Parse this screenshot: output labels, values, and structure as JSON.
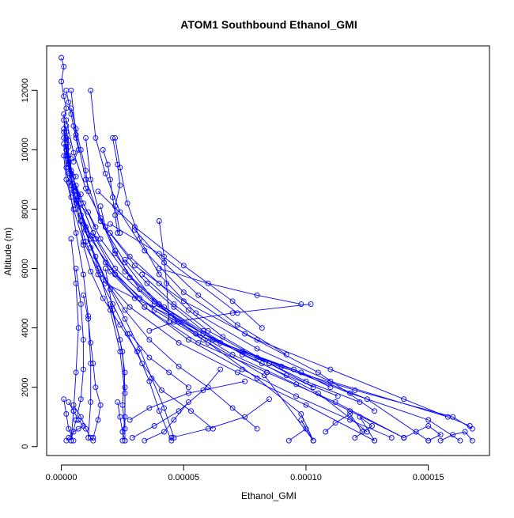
{
  "chart_data": {
    "type": "line",
    "title": "ATOM1 Southbound Ethanol_GMI",
    "xlabel": "Ethanol_GMI",
    "ylabel": "Altitude (m)",
    "xlim": [
      -6e-06,
      0.000175
    ],
    "ylim": [
      -300,
      13500
    ],
    "x_ticks": [
      0,
      5e-05,
      0.0001,
      0.00015
    ],
    "x_tick_labels": [
      "0.00000",
      "0.00005",
      "0.00010",
      "0.00015"
    ],
    "y_ticks": [
      0,
      2000,
      4000,
      6000,
      8000,
      10000,
      12000
    ],
    "y_tick_labels": [
      "0",
      "2000",
      "4000",
      "6000",
      "8000",
      "10000",
      "12000"
    ],
    "grid": false,
    "legend": "none",
    "color": "#0000ff",
    "marker": "open-circle",
    "series": [
      {
        "x": [
          1e-06,
          2e-06,
          4e-06,
          6e-06,
          9e-06,
          1.1e-05,
          1.2e-05,
          1.2e-05,
          1.1e-05
        ],
        "y": [
          10200,
          9400,
          8400,
          7200,
          5800,
          4400,
          2800,
          1500,
          300
        ]
      },
      {
        "x": [
          2e-06,
          3e-06,
          6e-06,
          1e-05,
          1.5e-05,
          2e-05,
          2.4e-05,
          2.6e-05,
          2.6e-05
        ],
        "y": [
          10800,
          9800,
          8600,
          7300,
          6000,
          4600,
          3200,
          1800,
          200
        ]
      },
      {
        "x": [
          1e-06,
          2e-06,
          5e-06,
          1e-05,
          1.8e-05,
          3.2e-05,
          5.5e-05,
          8.5e-05,
          0.00012,
          0.00016,
          0.000168
        ],
        "y": [
          11200,
          9800,
          8600,
          7400,
          6200,
          5000,
          3800,
          2800,
          1900,
          1000,
          600
        ]
      },
      {
        "x": [
          1e-06,
          3e-06,
          7e-06,
          1.3e-05,
          2.2e-05,
          3.8e-05,
          6.2e-05,
          9e-05,
          0.000118,
          0.00015,
          0.000163
        ],
        "y": [
          10600,
          9600,
          8400,
          7200,
          6000,
          4800,
          3600,
          2700,
          1800,
          900,
          200
        ]
      },
      {
        "x": [
          2e-06,
          4e-06,
          9e-06,
          1.6e-05,
          2.6e-05,
          4.2e-05,
          6.5e-05,
          9.5e-05,
          0.000125,
          0.00015
        ],
        "y": [
          10000,
          9200,
          8200,
          7000,
          5900,
          4700,
          3500,
          2600,
          1600,
          200
        ]
      },
      {
        "x": [
          1e-06,
          2e-06,
          5e-06,
          9e-06,
          1.6e-05,
          2.8e-05,
          4.8e-05,
          7.2e-05,
          0.0001,
          0.000128
        ],
        "y": [
          9800,
          9000,
          8000,
          6900,
          5800,
          4700,
          3500,
          2500,
          1400,
          200
        ]
      },
      {
        "x": [
          2e-06,
          5e-06,
          1e-05,
          1.8e-05,
          3e-05,
          5e-05,
          8e-05,
          0.00011,
          0.00014,
          0.000167
        ],
        "y": [
          11000,
          9900,
          8700,
          7400,
          6100,
          4900,
          3600,
          2600,
          1600,
          700
        ]
      },
      {
        "x": [
          1e-06,
          3e-06,
          6e-06,
          1.2e-05,
          2e-05,
          3.4e-05,
          5.6e-05,
          8.4e-05,
          0.000112,
          0.00014
        ],
        "y": [
          10400,
          9400,
          8300,
          7100,
          5900,
          4700,
          3500,
          2500,
          1500,
          300
        ]
      },
      {
        "x": [
          1.2e-05,
          1.4e-05,
          1.8e-05,
          2.4e-05,
          3.4e-05,
          5e-05,
          7.5e-05,
          0.000105,
          0.000128
        ],
        "y": [
          12000,
          10400,
          9200,
          7900,
          6600,
          5200,
          3800,
          2500,
          1200
        ]
      },
      {
        "x": [
          2.2e-05,
          2.4e-05,
          2.7e-05,
          3.2e-05,
          4e-05,
          5.5e-05,
          8e-05,
          0.00011,
          0.000158
        ],
        "y": [
          10400,
          9400,
          8200,
          7000,
          5800,
          4500,
          3300,
          2200,
          1000
        ]
      },
      {
        "x": [
          4e-06,
          6e-06,
          1e-05,
          1.6e-05,
          2.6e-05,
          3.8e-05,
          5.8e-05,
          8.3e-05,
          0.000103
        ],
        "y": [
          12000,
          10500,
          9000,
          7600,
          6200,
          4900,
          3600,
          2400,
          200
        ]
      },
      {
        "x": [
          1.6e-05,
          1.8e-05,
          2.2e-05,
          2.8e-05,
          4e-05,
          5.8e-05,
          8.2e-05,
          0.000105,
          0.000125
        ],
        "y": [
          8100,
          7400,
          6600,
          5700,
          4800,
          3800,
          2800,
          1800,
          500
        ]
      },
      {
        "x": [
          3e-06,
          6e-06,
          1e-05,
          1.5e-05,
          2.1e-05,
          2.7e-05,
          3.3e-05,
          4.1e-05,
          5.3e-05,
          6.2e-05
        ],
        "y": [
          9200,
          8000,
          6900,
          5800,
          4800,
          3800,
          2800,
          1900,
          1200,
          600
        ]
      },
      {
        "x": [
          4e-06,
          8e-06,
          1.4e-05,
          2e-05,
          2.6e-05,
          3.2e-05,
          3.7e-05,
          4.2e-05,
          4.6e-05
        ],
        "y": [
          8800,
          7600,
          6400,
          5300,
          4300,
          3300,
          2300,
          1300,
          300
        ]
      },
      {
        "x": [
          8e-06,
          9e-06,
          1.2e-05,
          1.7e-05,
          2.4e-05,
          3.1e-05,
          3.6e-05,
          4e-05,
          4.5e-05
        ],
        "y": [
          7600,
          6800,
          5900,
          5000,
          4100,
          3200,
          2200,
          1200,
          200
        ]
      },
      {
        "x": [
          6e-06,
          8e-06,
          1.2e-05,
          1.8e-05,
          2.6e-05,
          3.6e-05,
          4.8e-05,
          6e-05,
          7e-05,
          8e-05
        ],
        "y": [
          8800,
          7800,
          6700,
          5600,
          4600,
          3600,
          2700,
          2000,
          1300,
          600
        ]
      },
      {
        "x": [
          3e-06,
          6e-06,
          1.2e-05,
          2.2e-05,
          3.8e-05,
          6e-05,
          8e-05,
          9.8e-05,
          0.000103
        ],
        "y": [
          9600,
          8300,
          7000,
          5800,
          4600,
          3500,
          2300,
          1100,
          200
        ]
      },
      {
        "x": [
          1e-05,
          1.2e-05,
          1.6e-05,
          2.2e-05,
          3.2e-05,
          4.8e-05,
          7e-05,
          9.6e-05,
          0.000118,
          0.00014
        ],
        "y": [
          10400,
          9000,
          7700,
          6500,
          5300,
          4200,
          3100,
          2100,
          1200,
          300
        ]
      },
      {
        "x": [
          2e-06,
          4e-06,
          8e-06,
          1.4e-05,
          2.2e-05,
          3.4e-05,
          5.2e-05,
          7.4e-05,
          9.6e-05,
          0.000118,
          0.000135
        ],
        "y": [
          10100,
          9300,
          8200,
          7000,
          5800,
          4700,
          3600,
          2600,
          1700,
          900,
          300
        ]
      },
      {
        "x": [
          2e-05,
          2.8e-05,
          4e-05,
          5.2e-05,
          6.6e-05,
          8.5e-05,
          0.000103
        ],
        "y": [
          7200,
          6400,
          5500,
          4600,
          3700,
          2800,
          2000
        ]
      },
      {
        "x": [
          2.6e-05,
          3.5e-05,
          4.6e-05,
          5.8e-05,
          7.4e-05,
          9.2e-05,
          0.000113
        ],
        "y": [
          6300,
          5500,
          4700,
          3900,
          3100,
          2400,
          1700
        ]
      },
      {
        "x": [
          1.8e-05,
          3e-05,
          4.5e-05,
          5.8e-05,
          7.4e-05,
          9.8e-05,
          0.00011
        ],
        "y": [
          5500,
          5000,
          4400,
          3800,
          3200,
          2500,
          2000
        ]
      },
      {
        "x": [
          3.3e-05,
          4.6e-05,
          6e-05,
          8e-05,
          0.0001,
          0.000122
        ],
        "y": [
          5800,
          4800,
          3900,
          3000,
          2200,
          1500
        ]
      },
      {
        "x": [
          4e-05,
          6e-05,
          8e-05,
          9.8e-05
        ],
        "y": [
          6000,
          5500,
          5100,
          4800
        ]
      },
      {
        "x": [
          0.000102,
          7e-05,
          4.6e-05,
          3.6e-05
        ],
        "y": [
          4800,
          4500,
          4200,
          3900
        ]
      },
      {
        "x": [
          2e-05,
          4e-05,
          7.2e-05
        ],
        "y": [
          7500,
          6500,
          4500
        ]
      },
      {
        "x": [
          1.5e-05,
          3e-05,
          5e-05,
          7e-05,
          8.2e-05
        ],
        "y": [
          8600,
          7400,
          6100,
          4900,
          4000
        ]
      },
      {
        "x": [
          3e-05,
          4.2e-05,
          5.6e-05,
          7.2e-05,
          9.2e-05
        ],
        "y": [
          7300,
          6200,
          5100,
          4100,
          3100
        ]
      },
      {
        "x": [
          4e-05,
          4.2e-05,
          4.3e-05,
          4.4e-05
        ],
        "y": [
          7600,
          6400,
          5500,
          4200
        ]
      },
      {
        "x": [
          2.8e-05,
          3.6e-05,
          4.4e-05,
          5.2e-05
        ],
        "y": [
          3800,
          3000,
          2500,
          2000
        ]
      },
      {
        "x": [
          2.9e-05,
          3.8e-05,
          4.8e-05,
          5.8e-05,
          6.5e-05
        ],
        "y": [
          300,
          700,
          1200,
          1900,
          2600
        ]
      },
      {
        "x": [
          4.5e-05,
          6e-05,
          7.5e-05,
          8.5e-05
        ],
        "y": [
          300,
          600,
          1000,
          1600
        ]
      },
      {
        "x": [
          3.4e-05,
          4.2e-05,
          4.6e-05,
          5.2e-05
        ],
        "y": [
          200,
          500,
          900,
          1500
        ]
      },
      {
        "x": [
          2.8e-05,
          3.6e-05,
          5.2e-05,
          7.5e-05
        ],
        "y": [
          900,
          1300,
          1800,
          2200
        ]
      },
      {
        "x": [
          9e-06,
          1.1e-05,
          1.2e-05,
          1.3e-05,
          1.4e-05,
          1.6e-05,
          1.5e-05,
          1.3e-05
        ],
        "y": [
          5100,
          4300,
          3500,
          2800,
          2000,
          1400,
          900,
          300
        ]
      },
      {
        "x": [
          6e-06,
          8e-06,
          9e-06,
          9e-06,
          8e-06,
          6e-06,
          4e-06
        ],
        "y": [
          6000,
          4800,
          3600,
          2600,
          1600,
          900,
          200
        ]
      },
      {
        "x": [
          4e-06,
          6e-06,
          7e-06,
          6e-06,
          5e-06,
          4e-06
        ],
        "y": [
          7000,
          5500,
          4000,
          2500,
          1200,
          200
        ]
      },
      {
        "x": [
          1.8e-05,
          2.1e-05,
          2.5e-05,
          2.6e-05,
          2.6e-05,
          2.5e-05
        ],
        "y": [
          6000,
          4600,
          3200,
          2000,
          1000,
          200
        ]
      },
      {
        "x": [
          2e-05,
          2.4e-05,
          2.6e-05,
          2.5e-05,
          2.6e-05
        ],
        "y": [
          4800,
          3600,
          2500,
          1400,
          600
        ]
      },
      {
        "x": [
          2.1e-05,
          2.3e-05,
          2.4e-05,
          2.2e-05,
          2.4e-05
        ],
        "y": [
          10400,
          9500,
          8800,
          8100,
          7200
        ]
      },
      {
        "x": [
          0.0,
          1e-06,
          0.0,
          1e-06,
          2e-06,
          1e-06,
          2e-06,
          3e-06,
          2e-06,
          4e-06,
          3e-06,
          6e-06,
          4e-06,
          8e-06,
          6e-06,
          1.1e-05,
          1.4e-05
        ],
        "y": [
          13100,
          12800,
          12300,
          11800,
          11400,
          11000,
          10600,
          10300,
          10000,
          9700,
          9400,
          9100,
          8800,
          8500,
          8200,
          7900,
          7400
        ]
      },
      {
        "x": [
          2e-06,
          3e-06,
          4e-06,
          5e-06,
          6e-06,
          7e-06,
          5e-06
        ],
        "y": [
          12000,
          11600,
          11200,
          10800,
          10400,
          10000,
          9600
        ]
      },
      {
        "x": [
          4e-06,
          6e-06,
          8e-06,
          1e-05,
          1.1e-05
        ],
        "y": [
          11400,
          10700,
          10000,
          9300,
          8600
        ]
      },
      {
        "x": [
          1.7e-05,
          1.9e-05,
          2e-05,
          2.1e-05,
          2.2e-05,
          2.3e-05
        ],
        "y": [
          10000,
          9500,
          9000,
          8400,
          7800,
          7200
        ]
      },
      {
        "x": [
          1e-06,
          2e-06,
          3e-06,
          2e-06,
          3e-06,
          4e-06,
          3e-06
        ],
        "y": [
          10700,
          10400,
          10100,
          9800,
          9500,
          9200,
          8900
        ]
      },
      {
        "x": [
          3e-06,
          5e-06,
          7e-06,
          9e-06,
          7e-06,
          5e-06,
          3e-06,
          2e-06
        ],
        "y": [
          1500,
          1200,
          900,
          700,
          600,
          500,
          300,
          200
        ]
      },
      {
        "x": [
          5e-06,
          8e-06,
          1e-05,
          1.2e-05,
          1.3e-05
        ],
        "y": [
          1400,
          1000,
          600,
          300,
          200
        ]
      },
      {
        "x": [
          1e-06,
          2e-06,
          3e-06,
          5e-06
        ],
        "y": [
          1600,
          1100,
          600,
          200
        ]
      },
      {
        "x": [
          2.3e-05,
          2.4e-05,
          2.5e-05,
          2.6e-05
        ],
        "y": [
          1500,
          1000,
          500,
          200
        ]
      },
      {
        "x": [
          9.3e-05,
          0.0001,
          9.8e-05,
          0.000103
        ],
        "y": [
          200,
          600,
          900,
          200
        ]
      },
      {
        "x": [
          0.00012,
          0.000127,
          0.000122,
          0.000128
        ],
        "y": [
          300,
          700,
          1000,
          200
        ]
      },
      {
        "x": [
          0.00014,
          0.000145,
          0.00015,
          0.000155,
          0.00015
        ],
        "y": [
          300,
          500,
          700,
          400,
          200
        ]
      },
      {
        "x": [
          0.000108,
          0.000112,
          0.000118,
          0.000123
        ],
        "y": [
          500,
          800,
          1100,
          500
        ]
      },
      {
        "x": [
          0.000155,
          0.00016,
          0.000165,
          0.000168
        ],
        "y": [
          200,
          400,
          500,
          200
        ]
      }
    ]
  }
}
